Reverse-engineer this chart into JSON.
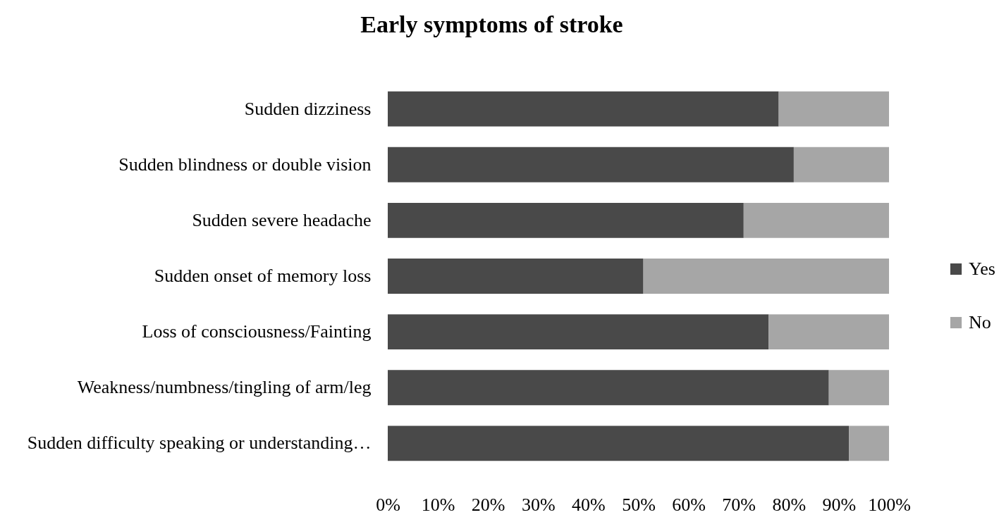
{
  "chart_data": {
    "type": "bar",
    "title": "Early symptoms of stroke",
    "orientation": "horizontal",
    "stacked": true,
    "categories": [
      "Sudden dizziness",
      "Sudden blindness or double vision",
      "Sudden severe headache",
      "Sudden onset of memory loss",
      "Loss of consciousness/Fainting",
      "Weakness/numbness/tingling of arm/leg",
      "Sudden difficulty speaking or understanding…"
    ],
    "series": [
      {
        "name": "Yes",
        "color": "#494949",
        "values": [
          78,
          81,
          71,
          51,
          76,
          88,
          92
        ]
      },
      {
        "name": "No",
        "color": "#a6a6a6",
        "values": [
          22,
          19,
          29,
          49,
          24,
          12,
          8
        ]
      }
    ],
    "xlim": [
      0,
      100
    ],
    "xticks": [
      {
        "value": 0,
        "label": "0%"
      },
      {
        "value": 10,
        "label": "10%"
      },
      {
        "value": 20,
        "label": "20%"
      },
      {
        "value": 30,
        "label": "30%"
      },
      {
        "value": 40,
        "label": "40%"
      },
      {
        "value": 50,
        "label": "50%"
      },
      {
        "value": 60,
        "label": "60%"
      },
      {
        "value": 70,
        "label": "70%"
      },
      {
        "value": 80,
        "label": "80%"
      },
      {
        "value": 90,
        "label": "90%"
      },
      {
        "value": 100,
        "label": "100%"
      }
    ],
    "legend": "right"
  }
}
